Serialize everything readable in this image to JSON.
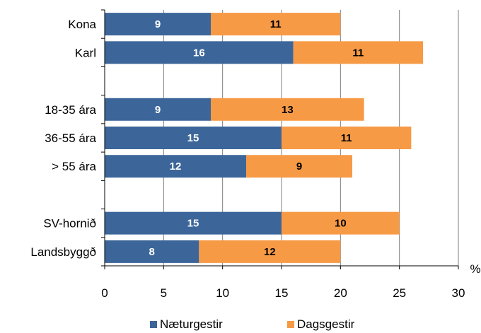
{
  "chart_data": {
    "type": "bar",
    "orientation": "horizontal",
    "stacked": true,
    "categories": [
      "Kona",
      "Karl",
      "",
      "18-35 ára",
      "36-55 ára",
      "> 55 ára",
      "",
      "SV-hornið",
      "Landsbyggð"
    ],
    "series": [
      {
        "name": "Næturgestir",
        "color": "#3C669A",
        "label_color": "#ffffff",
        "values": [
          9,
          16,
          null,
          9,
          15,
          12,
          null,
          15,
          8
        ]
      },
      {
        "name": "Dagsgestir",
        "color": "#F79A46",
        "label_color": "#000000",
        "values": [
          11,
          11,
          null,
          13,
          11,
          9,
          null,
          10,
          12
        ]
      }
    ],
    "xlim": [
      0,
      30
    ],
    "xticks": [
      0,
      5,
      10,
      15,
      20,
      25,
      30
    ],
    "x_unit": "%",
    "grid": "vertical",
    "legend": "bottom"
  }
}
